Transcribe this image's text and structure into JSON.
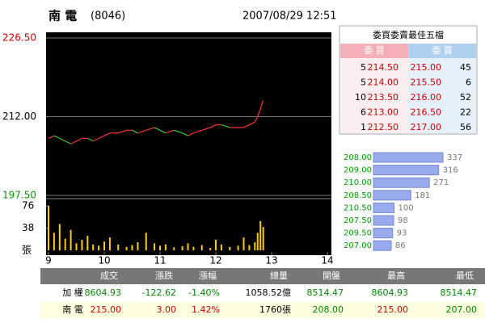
{
  "header": {
    "name": "南 電",
    "code": "(8046)",
    "datetime": "2007/08/29 12:51"
  },
  "chart_data": {
    "type": "line",
    "x": [
      9.0,
      9.1,
      9.2,
      9.3,
      9.4,
      9.5,
      9.6,
      9.7,
      9.8,
      9.9,
      10.0,
      10.1,
      10.25,
      10.4,
      10.5,
      10.6,
      10.75,
      10.9,
      11.0,
      11.1,
      11.25,
      11.4,
      11.5,
      11.6,
      11.75,
      11.9,
      12.0,
      12.1,
      12.25,
      12.4,
      12.5,
      12.6,
      12.7,
      12.75,
      12.8,
      12.85
    ],
    "series": [
      {
        "name": "price",
        "values": [
          208.0,
          208.5,
          208.0,
          207.5,
          207.0,
          207.5,
          208.0,
          208.0,
          207.5,
          208.0,
          208.5,
          209.0,
          209.0,
          209.5,
          209.5,
          209.0,
          209.5,
          210.0,
          209.5,
          209.0,
          209.5,
          209.0,
          208.5,
          209.0,
          209.5,
          210.0,
          210.5,
          210.5,
          210.0,
          210.0,
          210.0,
          210.5,
          211.0,
          212.0,
          213.5,
          215.0
        ]
      },
      {
        "name": "volume",
        "color": "#ffcc00",
        "values": [
          76,
          30,
          45,
          20,
          35,
          12,
          18,
          25,
          10,
          8,
          15,
          22,
          10,
          6,
          9,
          14,
          30,
          12,
          8,
          10,
          5,
          7,
          12,
          6,
          9,
          4,
          18,
          10,
          6,
          8,
          22,
          9,
          14,
          30,
          50,
          40
        ]
      }
    ],
    "up_color": "#ff3333",
    "down_color": "#33cc33",
    "xlim": [
      9,
      14
    ],
    "xticks": [
      9,
      10,
      11,
      12,
      13,
      14
    ],
    "ylim": [
      197.5,
      226.5
    ],
    "yticks": [
      {
        "value": 197.5,
        "label": "197.50"
      },
      {
        "value": 212,
        "label": "212.00"
      },
      {
        "value": 226.5,
        "label": "226.50"
      }
    ],
    "ytick_colors": [
      "#009900",
      "#000000",
      "#cc0000"
    ],
    "volume_ylim": [
      0,
      76
    ],
    "volume_yticks": [
      38,
      76
    ],
    "volume_unit": "張",
    "grid": true
  },
  "order_book": {
    "title": "委買委賣最佳五檔",
    "bid_header": "委 買",
    "ask_header": "委 賣",
    "rows": [
      [
        5,
        "214.50",
        "215.00",
        45
      ],
      [
        5,
        "214.00",
        "215.50",
        6
      ],
      [
        10,
        "213.50",
        "216.00",
        52
      ],
      [
        6,
        "213.00",
        "216.50",
        22
      ],
      [
        1,
        "212.50",
        "217.00",
        56
      ]
    ]
  },
  "distribution": {
    "prices": [
      "208.00",
      "209.00",
      "210.00",
      "208.50",
      "210.50",
      "207.50",
      "209.50",
      "207.00"
    ],
    "values": [
      337,
      316,
      271,
      181,
      100,
      98,
      93,
      86
    ],
    "color": "#99aaee"
  },
  "summary": {
    "headers": [
      "成交",
      "漲跌",
      "漲幅",
      "總量",
      "開盤",
      "最高",
      "最低"
    ],
    "rows": [
      {
        "label": "加 權",
        "cells": [
          "8604.93",
          "-122.62",
          "-1.40%",
          "1058.52億",
          "8514.47",
          "8604.93",
          "8514.47"
        ],
        "colors": [
          "#008800",
          "#008800",
          "#008800",
          "#000000",
          "#008800",
          "#008800",
          "#008800"
        ]
      },
      {
        "label": "南 電",
        "cells": [
          "215.00",
          "3.00",
          "1.42%",
          "1760張",
          "208.00",
          "215.00",
          "207.00"
        ],
        "colors": [
          "#cc0000",
          "#cc0000",
          "#cc0000",
          "#000000",
          "#008800",
          "#cc0000",
          "#008800"
        ]
      }
    ]
  }
}
